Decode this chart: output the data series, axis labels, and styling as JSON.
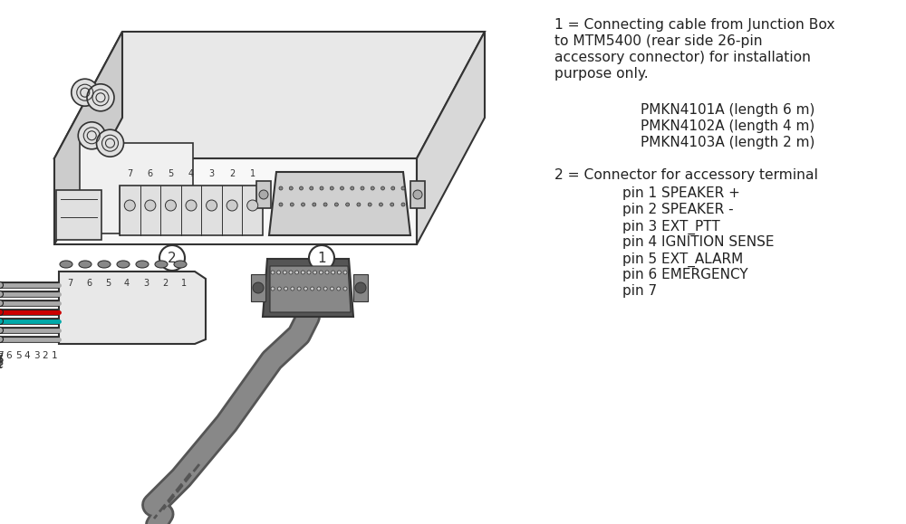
{
  "background_color": "#ffffff",
  "text_color": "#222222",
  "line_color": "#333333",
  "fig_width": 10.0,
  "fig_height": 5.79,
  "dpi": 100,
  "label1_line1": "1 = Connecting cable from Junction Box",
  "label1_line2": "to MTM5400 (rear side 26-pin",
  "label1_line3": "accessory connector) for installation",
  "label1_line4": "purpose only.",
  "pmkn1": "PMKN4101A (length 6 m)",
  "pmkn2": "PMKN4102A (length 4 m)",
  "pmkn3": "PMKN4103A (length 2 m)",
  "label2_line1": "2 = Connector for accessory terminal",
  "pin1": "pin 1 SPEAKER +",
  "pin2": "pin 2 SPEAKER -",
  "pin3": "pin 3 EXT_PTT",
  "pin4": "pin 4 IGNITION SENSE",
  "pin5": "pin 5 EXT_ALARM",
  "pin6": "pin 6 EMERGENCY",
  "pin7": "pin 7",
  "font_size": 11.2,
  "font_size_sub": 11.0
}
